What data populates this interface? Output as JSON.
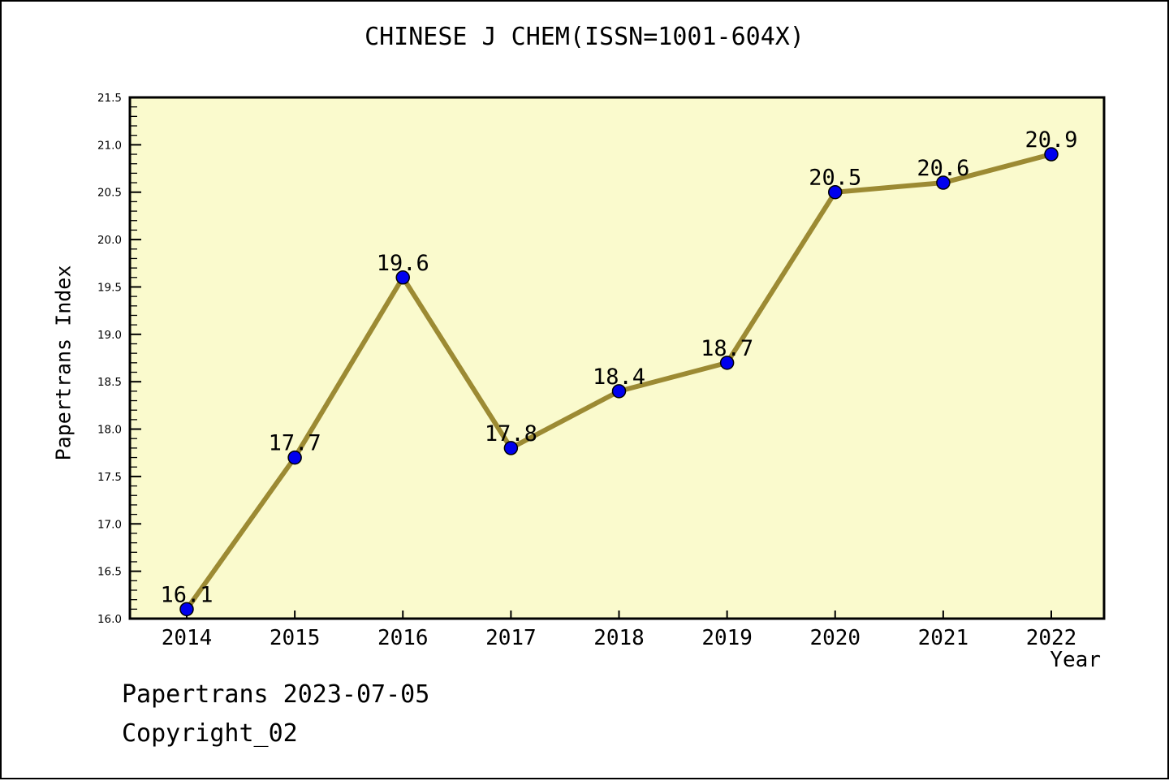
{
  "page": {
    "background": "#ffffff",
    "border_color": "#000000"
  },
  "chart_data": {
    "type": "line",
    "title": "CHINESE J CHEM(ISSN=1001-604X)",
    "xlabel": "Year",
    "ylabel": "Papertrans Index",
    "x": [
      2014,
      2015,
      2016,
      2017,
      2018,
      2019,
      2020,
      2021,
      2022
    ],
    "values": [
      16.1,
      17.7,
      19.6,
      17.8,
      18.4,
      18.7,
      20.5,
      20.6,
      20.9
    ],
    "point_labels": [
      "16.1",
      "17.7",
      "19.6",
      "17.8",
      "18.4",
      "18.7",
      "20.5",
      "20.6",
      "20.9"
    ],
    "xtick_labels": [
      "2014",
      "2015",
      "2016",
      "2017",
      "2018",
      "2019",
      "2020",
      "2021",
      "2022"
    ],
    "ylim": [
      16.0,
      21.5
    ],
    "ytick_step": 0.5,
    "ytick_minor_step": 0.1,
    "ytick_labels": [
      "16.0",
      "16.5",
      "17.0",
      "17.5",
      "18.0",
      "18.5",
      "19.0",
      "19.5",
      "20.0",
      "20.5",
      "21.0",
      "21.5"
    ],
    "grid": "off",
    "legend": "none",
    "colors": {
      "plot_background": "#FAFACD",
      "line": "#9C8A33",
      "marker_fill": "#0000EE",
      "marker_edge": "#000000",
      "axis": "#000000",
      "text": "#000000"
    }
  },
  "footer": {
    "line1": "Papertrans 2023-07-05",
    "line2": "Copyright_02"
  }
}
